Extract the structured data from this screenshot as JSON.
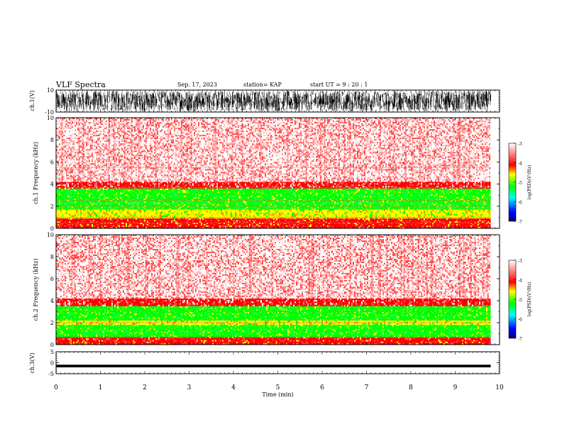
{
  "header": {
    "title": "VLF Spectra",
    "date": "Sep. 17, 2023",
    "station": "station= KAP",
    "start": "start  UT =   9 : 20 : 1"
  },
  "chart_data": [
    {
      "type": "line",
      "panel": "ch1-waveform",
      "ylabel": "ch.1(V)",
      "xlim": [
        0,
        10
      ],
      "ylim": [
        -10,
        10
      ],
      "yticks": [
        "10",
        "-10"
      ],
      "x_extent_min": 9.8,
      "description_of_signal": "noise"
    },
    {
      "type": "heatmap",
      "panel": "ch1-spectrogram",
      "ylabel": "ch.1  Frequency  (kHz)",
      "xlim": [
        0,
        10
      ],
      "ylim": [
        0,
        10
      ],
      "yticks": [
        "0",
        "2",
        "4",
        "6",
        "8",
        "10"
      ],
      "x_extent_min": 9.8,
      "colorbar": {
        "label": "log(PSD)(V²/Hz)",
        "range": [
          -7,
          -3
        ],
        "ticks": [
          "-3",
          "-4",
          "-5",
          "-6",
          "-7"
        ],
        "colors": [
          "#000080",
          "#0000ff",
          "#00ffff",
          "#00ff00",
          "#ffff00",
          "#ff0000",
          "#ffffff"
        ]
      },
      "bands": [
        {
          "from_khz": 0.0,
          "to_khz": 0.9,
          "level": "red"
        },
        {
          "from_khz": 0.9,
          "to_khz": 1.7,
          "level": "yellow-green"
        },
        {
          "from_khz": 1.7,
          "to_khz": 2.3,
          "level": "green"
        },
        {
          "from_khz": 2.3,
          "to_khz": 3.6,
          "level": "green"
        },
        {
          "from_khz": 3.6,
          "to_khz": 4.2,
          "level": "red-dense"
        },
        {
          "from_khz": 4.2,
          "to_khz": 10.0,
          "level": "red-sparse"
        }
      ],
      "lines_khz": [
        0.5,
        1.0,
        2.0,
        2.5,
        3.7,
        5.5
      ]
    },
    {
      "type": "heatmap",
      "panel": "ch2-spectrogram",
      "ylabel": "ch.2  Frequency  (kHz)",
      "xlim": [
        0,
        10
      ],
      "ylim": [
        0,
        10
      ],
      "yticks": [
        "0",
        "2",
        "4",
        "6",
        "8",
        "10"
      ],
      "x_extent_min": 9.8,
      "colorbar": {
        "label": "log(PSD)(V²/Hz)",
        "range": [
          -7,
          -3
        ],
        "ticks": [
          "-3",
          "-4",
          "-5",
          "-6",
          "-7"
        ],
        "colors": [
          "#000080",
          "#0000ff",
          "#00ffff",
          "#00ff00",
          "#ffff00",
          "#ff0000",
          "#ffffff"
        ]
      },
      "bands": [
        {
          "from_khz": 0.0,
          "to_khz": 0.7,
          "level": "red"
        },
        {
          "from_khz": 0.7,
          "to_khz": 1.8,
          "level": "green"
        },
        {
          "from_khz": 1.8,
          "to_khz": 2.2,
          "level": "yellow-green"
        },
        {
          "from_khz": 2.2,
          "to_khz": 3.5,
          "level": "green"
        },
        {
          "from_khz": 3.5,
          "to_khz": 4.2,
          "level": "red-dense"
        },
        {
          "from_khz": 4.2,
          "to_khz": 10.0,
          "level": "red-sparse"
        }
      ],
      "lines_khz": [
        0.6,
        2.0,
        3.0
      ]
    },
    {
      "type": "line",
      "panel": "ch3-waveform",
      "ylabel": "ch.3(V)",
      "xlabel": "Time  (min)",
      "xlim": [
        0,
        10
      ],
      "ylim": [
        -5,
        5
      ],
      "yticks": [
        "5",
        "0",
        "-5"
      ],
      "xticks": [
        "0",
        "1",
        "2",
        "3",
        "4",
        "5",
        "6",
        "7",
        "8",
        "9",
        "10"
      ],
      "x_extent_min": 9.8,
      "signal_center": -1.5,
      "signal_amplitude": 0.6
    }
  ]
}
